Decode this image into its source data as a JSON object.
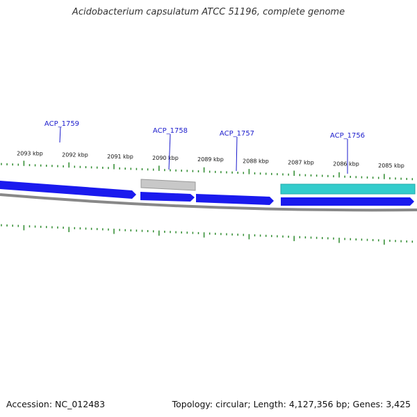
{
  "title": "Acidobacterium capsulatum ATCC 51196, complete genome",
  "footer": {
    "accession": "Accession: NC_012483",
    "stats": "Topology: circular; Length: 4,127,356 bp; Genes: 3,425"
  },
  "colors": {
    "forward_gene": "#1a1aee",
    "reverse_gene_cyan": "#33cccc",
    "pseudo_gray": "#bbbbbb",
    "backbone": "#888888",
    "tick": "#2e8b2e",
    "label": "#1a1acc"
  },
  "kbp_labels": [
    "2093 kbp",
    "2092 kbp",
    "2091 kbp",
    "2090 kbp",
    "2089 kbp",
    "2088 kbp",
    "2087 kbp",
    "2086 kbp",
    "2085 kbp"
  ],
  "genes": [
    {
      "name": "ACP_1759",
      "strand": "forward",
      "color": "blue"
    },
    {
      "name": "ACP_1758",
      "strand": "forward",
      "color": "blue"
    },
    {
      "name": "ACP_1757",
      "strand": "forward",
      "color": "blue"
    },
    {
      "name": "ACP_1756",
      "strand": "forward",
      "color": "blue"
    }
  ]
}
